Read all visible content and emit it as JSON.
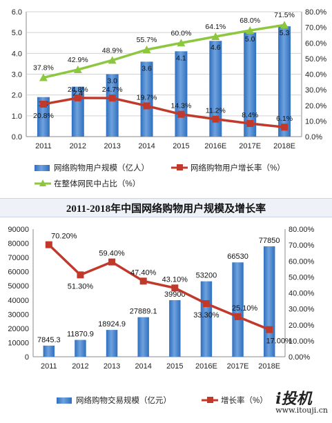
{
  "divider_title": "2011-2018年中国网络购物用户规模及增长率",
  "watermark": {
    "brand": "i投机",
    "site": "www.itouji.cn"
  },
  "colors": {
    "bar": "#2f6fbf",
    "bar_light": "#6fa2dd",
    "growth": "#c0392b",
    "share": "#8dc63f"
  },
  "chart_data": [
    {
      "type": "bar",
      "categories": [
        "2011",
        "2012",
        "2013",
        "2014",
        "2015",
        "2016E",
        "2017E",
        "2018E"
      ],
      "series": [
        {
          "name": "网络购物用户规模（亿人）",
          "kind": "bar",
          "axis": "left",
          "values": [
            1.9,
            2.4,
            3.0,
            3.6,
            4.1,
            4.6,
            5.0,
            5.3
          ],
          "labels": [
            "1.9",
            "2.4",
            "3.0",
            "3.6",
            "4.1",
            "4.6",
            "5.0",
            "5.3"
          ]
        },
        {
          "name": "网络购物用户增长率（%）",
          "kind": "line",
          "axis": "right",
          "values": [
            20.8,
            24.8,
            24.7,
            19.7,
            14.3,
            11.2,
            8.4,
            6.1
          ],
          "labels": [
            "20.8%",
            "24.8%",
            "24.7%",
            "19.7%",
            "14.3%",
            "11.2%",
            "8.4%",
            "6.1%"
          ]
        },
        {
          "name": "在整体网民中占比（%）",
          "kind": "line",
          "axis": "right",
          "values": [
            37.8,
            42.9,
            48.9,
            55.7,
            60.0,
            64.1,
            68.0,
            71.5
          ],
          "labels": [
            "37.8%",
            "42.9%",
            "48.9%",
            "55.7%",
            "60.0%",
            "64.1%",
            "68.0%",
            "71.5%"
          ]
        }
      ],
      "ylim_left": [
        0,
        6
      ],
      "yticks_left": [
        "0.0",
        "1.0",
        "2.0",
        "3.0",
        "4.0",
        "5.0",
        "6.0"
      ],
      "ylim_right": [
        0,
        80
      ],
      "yticks_right": [
        "0.0%",
        "10.0%",
        "20.0%",
        "30.0%",
        "40.0%",
        "50.0%",
        "60.0%",
        "70.0%",
        "80.0%"
      ],
      "grid": true
    },
    {
      "type": "bar",
      "categories": [
        "2011",
        "2012",
        "2013",
        "2014",
        "2015",
        "2016E",
        "2017E",
        "2018E"
      ],
      "series": [
        {
          "name": "网络购物交易规模（亿元）",
          "kind": "bar",
          "axis": "left",
          "values": [
            7845.3,
            11870.9,
            18924.9,
            27889.1,
            39900,
            53200,
            66530,
            77850
          ],
          "labels": [
            "7845.3",
            "11870.9",
            "18924.9",
            "27889.1",
            "39900",
            "53200",
            "66530",
            "77850"
          ]
        },
        {
          "name": "增长率（%）",
          "kind": "line",
          "axis": "right",
          "values": [
            70.2,
            51.3,
            59.4,
            47.4,
            43.1,
            33.3,
            25.1,
            17.0
          ],
          "labels": [
            "70.20%",
            "51.30%",
            "59.40%",
            "47.40%",
            "43.10%",
            "33.30%",
            "25.10%",
            "17.00%"
          ]
        }
      ],
      "ylim_left": [
        0,
        90000
      ],
      "yticks_left": [
        "0",
        "10000",
        "20000",
        "30000",
        "40000",
        "50000",
        "60000",
        "70000",
        "80000",
        "90000"
      ],
      "ylim_right": [
        0,
        80
      ],
      "yticks_right": [
        "0.00%",
        "10.00%",
        "20.00%",
        "30.00%",
        "40.00%",
        "50.00%",
        "60.00%",
        "70.00%",
        "80.00%"
      ],
      "grid": false
    }
  ]
}
